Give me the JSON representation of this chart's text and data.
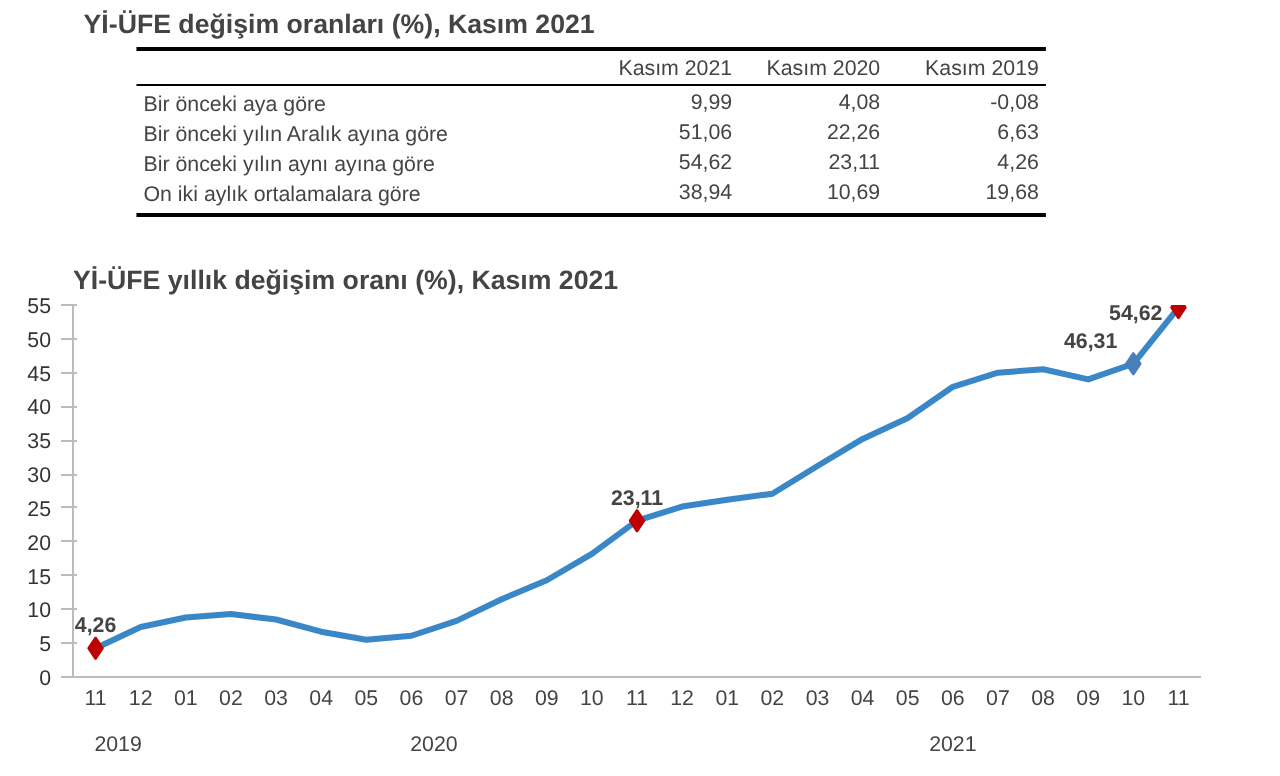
{
  "chart_data": [
    {
      "type": "other",
      "title": "Yİ-ÜFE değişim oranları (%), Kasım 2021",
      "categories": [
        "Kasım 2021",
        "Kasım 2020",
        "Kasım 2019"
      ],
      "y_categories": [
        "Bir önceki aya göre",
        "Bir önceki yılın Aralık ayına göre",
        "Bir önceki yılın aynı ayına göre",
        "On iki aylık ortalamalara göre"
      ],
      "cell_labels": [
        [
          "9,99",
          "4,08",
          "-0,08"
        ],
        [
          "51,06",
          "22,26",
          "6,63"
        ],
        [
          "54,62",
          "23,11",
          "4,26"
        ],
        [
          "38,94",
          "10,69",
          "19,68"
        ]
      ]
    },
    {
      "type": "line",
      "title": "Yİ-ÜFE yıllık değişim oranı (%), Kasım 2021",
      "categories": [
        "11",
        "12",
        "01",
        "02",
        "03",
        "04",
        "05",
        "06",
        "07",
        "08",
        "09",
        "10",
        "11",
        "12",
        "01",
        "02",
        "03",
        "04",
        "05",
        "06",
        "07",
        "08",
        "09",
        "10",
        "11"
      ],
      "annotations": [
        "2019",
        "2020",
        "2021"
      ],
      "series": [
        {
          "type": "line",
          "color": "#3a87c8",
          "values": [
            4.26,
            7.4,
            8.8,
            9.3,
            8.5,
            6.7,
            5.5,
            6.1,
            8.3,
            11.5,
            14.3,
            18.2,
            23.11,
            25.2,
            26.2,
            27.1,
            31.2,
            35.2,
            38.3,
            42.9,
            45.0,
            45.5,
            44.0,
            46.31,
            54.62
          ]
        },
        {
          "type": "scatter",
          "marker": "diamond",
          "color": "#c00000",
          "values": [
            4.26,
            null,
            null,
            null,
            null,
            null,
            null,
            null,
            null,
            null,
            null,
            null,
            23.11,
            null,
            null,
            null,
            null,
            null,
            null,
            null,
            null,
            null,
            null,
            null,
            54.62
          ],
          "value_labels": [
            "4,26",
            null,
            null,
            null,
            null,
            null,
            null,
            null,
            null,
            null,
            null,
            null,
            "23,11",
            null,
            null,
            null,
            null,
            null,
            null,
            null,
            null,
            null,
            null,
            null,
            "54,62"
          ]
        },
        {
          "type": "scatter",
          "marker": "diamond",
          "color": "#4a7ebb",
          "values": [
            null,
            null,
            null,
            null,
            null,
            null,
            null,
            null,
            null,
            null,
            null,
            null,
            null,
            null,
            null,
            null,
            null,
            null,
            null,
            null,
            null,
            null,
            null,
            46.31,
            null
          ],
          "value_labels": [
            null,
            null,
            null,
            null,
            null,
            null,
            null,
            null,
            null,
            null,
            null,
            null,
            null,
            null,
            null,
            null,
            null,
            null,
            null,
            null,
            null,
            null,
            null,
            "46,31",
            null
          ]
        }
      ],
      "ylim": [
        0,
        55
      ],
      "yticks": [
        0,
        5,
        10,
        15,
        20,
        25,
        30,
        35,
        40,
        45,
        50,
        55
      ],
      "grid": false
    }
  ]
}
